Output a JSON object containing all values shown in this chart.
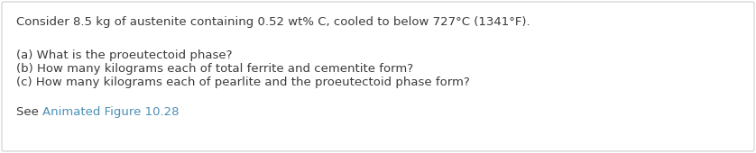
{
  "background_color": "#ffffff",
  "border_color": "#d0d0d0",
  "text_color": "#3a3a3a",
  "link_color": "#4a8fb5",
  "line1": "Consider 8.5 kg of austenite containing 0.52 wt% C, cooled to below 727°C (1341°F).",
  "line2a": "(a) What is the proeutectoid phase?",
  "line2b": "(b) How many kilograms each of total ferrite and cementite form?",
  "line2c": "(c) How many kilograms each of pearlite and the proeutectoid phase form?",
  "line3_prefix": "See ",
  "line3_link": "Animated Figure 10.28",
  "font_size_main": 9.5,
  "fig_width": 8.38,
  "fig_height": 1.7,
  "dpi": 100
}
